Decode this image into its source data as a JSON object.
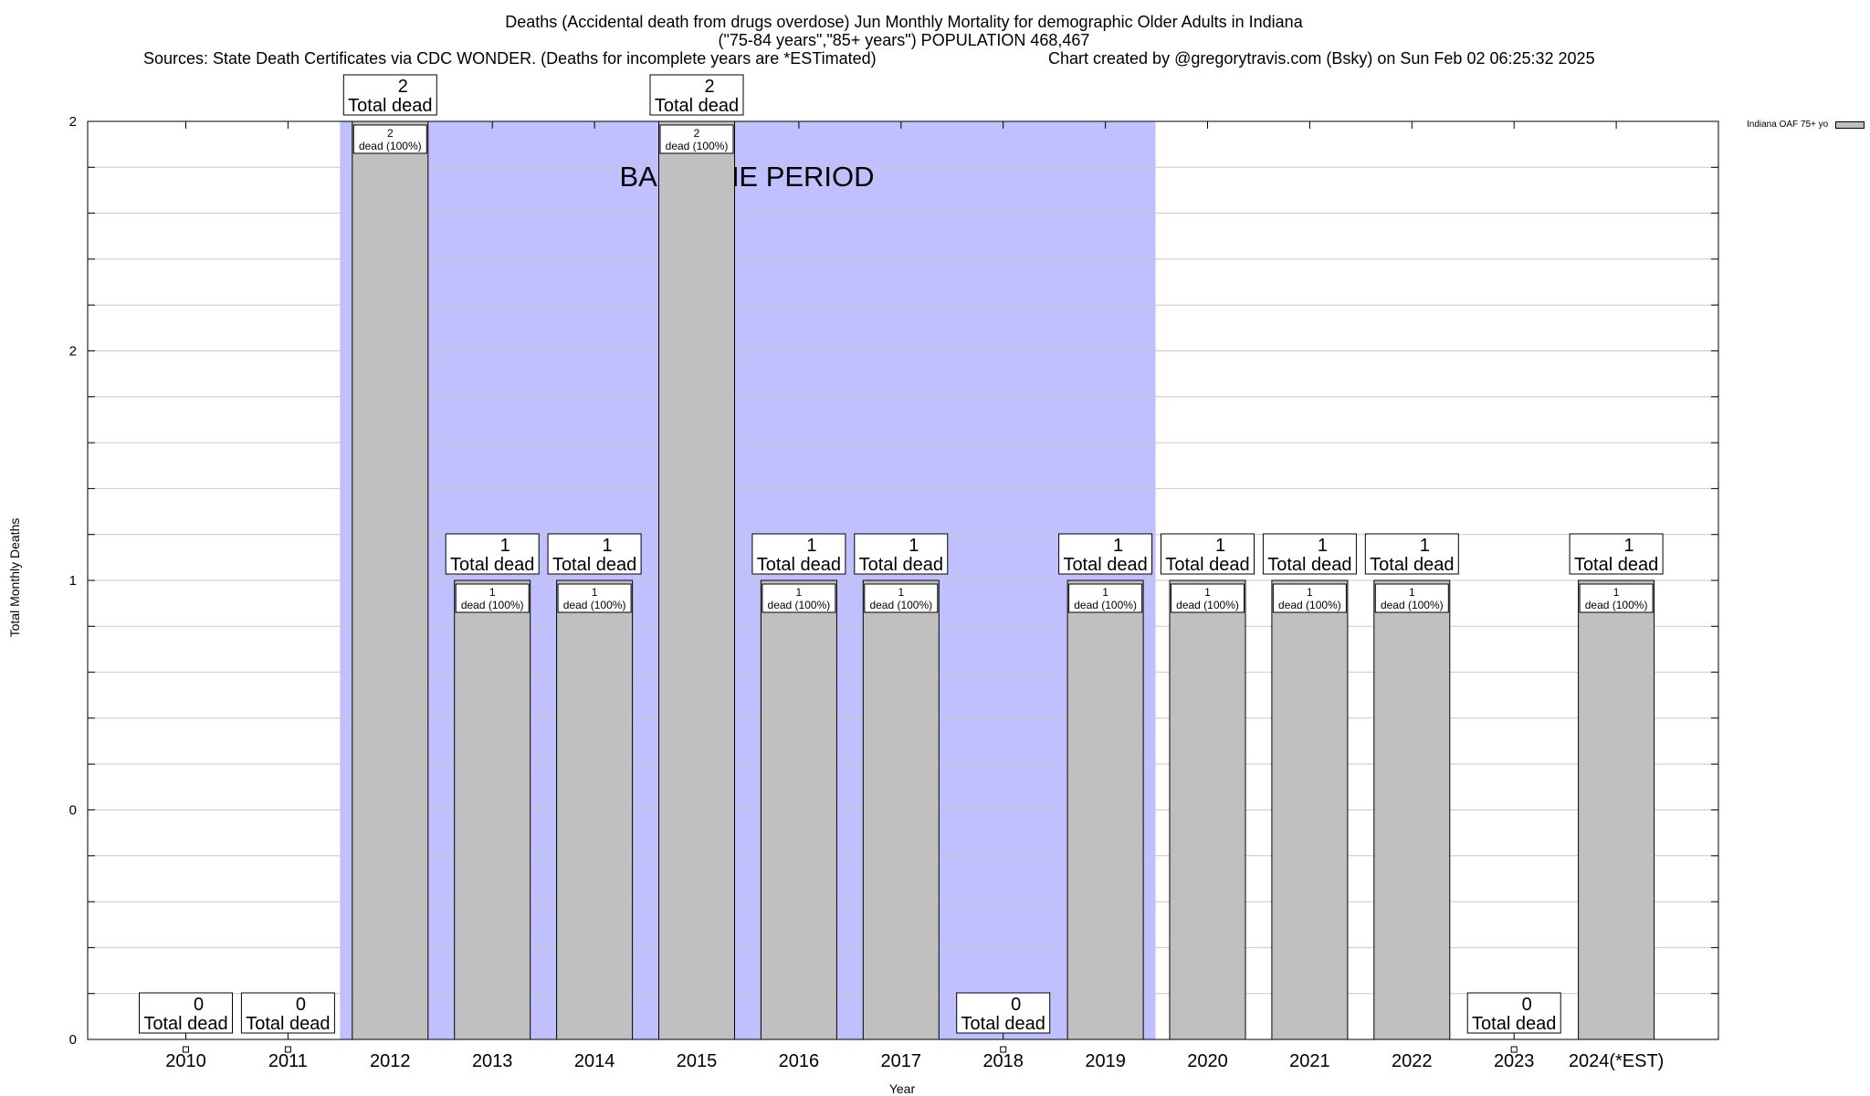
{
  "chart_data": {
    "type": "bar",
    "title_lines": [
      "Deaths (Accidental death from drugs overdose) Jun Monthly Mortality for demographic Older Adults in Indiana",
      "(\"75-84 years\",\"85+ years\") POPULATION 468,467"
    ],
    "sources": "Sources: State Death Certificates via CDC WONDER. (Deaths for incomplete years are *ESTimated)",
    "credit": "Chart created by @gregorytravis.com (Bsky) on Sun Feb 02 06:25:32 2025",
    "xlabel": "Year",
    "ylabel": "Total Monthly Deaths",
    "ylim": [
      0,
      2
    ],
    "y_tick_values": [
      0,
      0.5,
      1,
      1.5,
      2
    ],
    "y_tick_labels": [
      "0",
      "0",
      "1",
      "2",
      "2"
    ],
    "grid": true,
    "legend": {
      "entry": "Indiana OAF 75+ yo",
      "placement": "top-right, outside plot"
    },
    "baseline_period": {
      "label": "BASELINE PERIOD",
      "from": "2012",
      "to": "2019",
      "color": "#c0c0ff"
    },
    "bar_color": "#c0c0c0",
    "categories": [
      "2010",
      "2011",
      "2012",
      "2013",
      "2014",
      "2015",
      "2016",
      "2017",
      "2018",
      "2019",
      "2020",
      "2021",
      "2022",
      "2023",
      "2024(*EST)"
    ],
    "series": [
      {
        "name": "Indiana OAF 75+ yo",
        "values": [
          0,
          0,
          2,
          1,
          1,
          2,
          1,
          1,
          0,
          1,
          1,
          1,
          1,
          0,
          1
        ]
      }
    ],
    "total_label": "Total dead",
    "inner_label_suffix": "dead (100%)"
  }
}
